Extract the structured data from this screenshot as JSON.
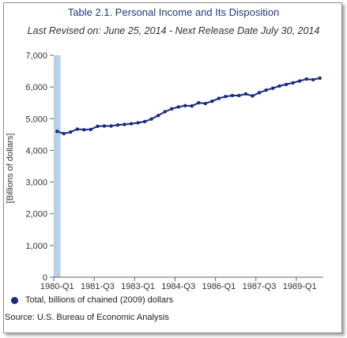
{
  "chart_data": {
    "type": "line",
    "title": "Table 2.1. Personal Income and Its Disposition",
    "subtitle": "Last Revised on: June 25, 2014 - Next Release Date July 30, 2014",
    "ylabel": "[Billions of dollars]",
    "xlabel": "",
    "ylim": [
      0,
      7000
    ],
    "yticks": [
      0,
      1000,
      2000,
      3000,
      4000,
      5000,
      6000,
      7000
    ],
    "ytick_labels": [
      "0",
      "1,000",
      "2,000",
      "3,000",
      "4,000",
      "5,000",
      "6,000",
      "7,000"
    ],
    "x_tick_labels": [
      "1980-Q1",
      "1981-Q3",
      "1983-Q1",
      "1984-Q3",
      "1986-Q1",
      "1987-Q3",
      "1989-Q1"
    ],
    "x": [
      "1980-Q1",
      "1980-Q2",
      "1980-Q3",
      "1980-Q4",
      "1981-Q1",
      "1981-Q2",
      "1981-Q3",
      "1981-Q4",
      "1982-Q1",
      "1982-Q2",
      "1982-Q3",
      "1982-Q4",
      "1983-Q1",
      "1983-Q2",
      "1983-Q3",
      "1983-Q4",
      "1984-Q1",
      "1984-Q2",
      "1984-Q3",
      "1984-Q4",
      "1985-Q1",
      "1985-Q2",
      "1985-Q3",
      "1985-Q4",
      "1986-Q1",
      "1986-Q2",
      "1986-Q3",
      "1986-Q4",
      "1987-Q1",
      "1987-Q2",
      "1987-Q3",
      "1987-Q4",
      "1988-Q1",
      "1988-Q2",
      "1988-Q3",
      "1988-Q4",
      "1989-Q1",
      "1989-Q2",
      "1989-Q3",
      "1989-Q4"
    ],
    "series": [
      {
        "name": "Total, billions of chained (2009) dollars",
        "color": "#1a2a80",
        "values": [
          4600,
          4530,
          4580,
          4670,
          4650,
          4660,
          4760,
          4770,
          4770,
          4800,
          4820,
          4840,
          4870,
          4910,
          4990,
          5100,
          5220,
          5310,
          5370,
          5410,
          5400,
          5500,
          5480,
          5550,
          5640,
          5700,
          5730,
          5730,
          5780,
          5720,
          5820,
          5900,
          5960,
          6030,
          6080,
          6130,
          6190,
          6250,
          6230,
          6280
        ]
      }
    ],
    "highlight_band": {
      "x": "1980-Q1",
      "color": "#b9cfe3"
    },
    "grid": false,
    "legend_position": "bottom-left"
  },
  "legend": {
    "label": "Total, billions of chained (2009) dollars",
    "color": "#1a2a80"
  },
  "source": "Source: U.S. Bureau of Economic Analysis"
}
